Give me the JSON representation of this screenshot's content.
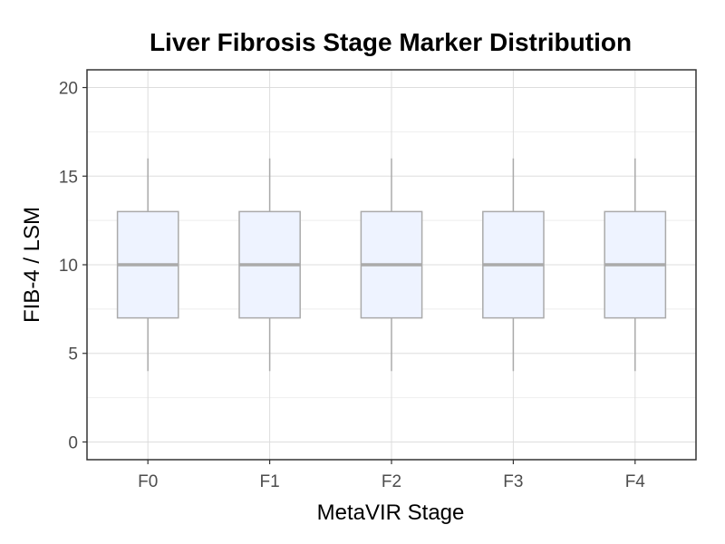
{
  "chart_data": {
    "type": "box",
    "title": "Liver Fibrosis Stage Marker Distribution",
    "xlabel": "MetaVIR Stage",
    "ylabel": "FIB-4 / LSM",
    "ylim": [
      -1,
      21
    ],
    "yticks": [
      0,
      5,
      10,
      15,
      20
    ],
    "grid": true,
    "categories": [
      "F0",
      "F1",
      "F2",
      "F3",
      "F4"
    ],
    "boxes": [
      {
        "min": 4,
        "q1": 7,
        "median": 10,
        "q3": 13,
        "max": 16
      },
      {
        "min": 4,
        "q1": 7,
        "median": 10,
        "q3": 13,
        "max": 16
      },
      {
        "min": 4,
        "q1": 7,
        "median": 10,
        "q3": 13,
        "max": 16
      },
      {
        "min": 4,
        "q1": 7,
        "median": 10,
        "q3": 13,
        "max": 16
      },
      {
        "min": 4,
        "q1": 7,
        "median": 10,
        "q3": 13,
        "max": 16
      }
    ],
    "colors": {
      "box_fill": "#eef3ff",
      "box_stroke": "#aaaaaa",
      "median": "#aaaaaa",
      "grid_major": "#dddddd",
      "grid_minor": "#eeeeee",
      "panel_border": "#333333"
    }
  }
}
